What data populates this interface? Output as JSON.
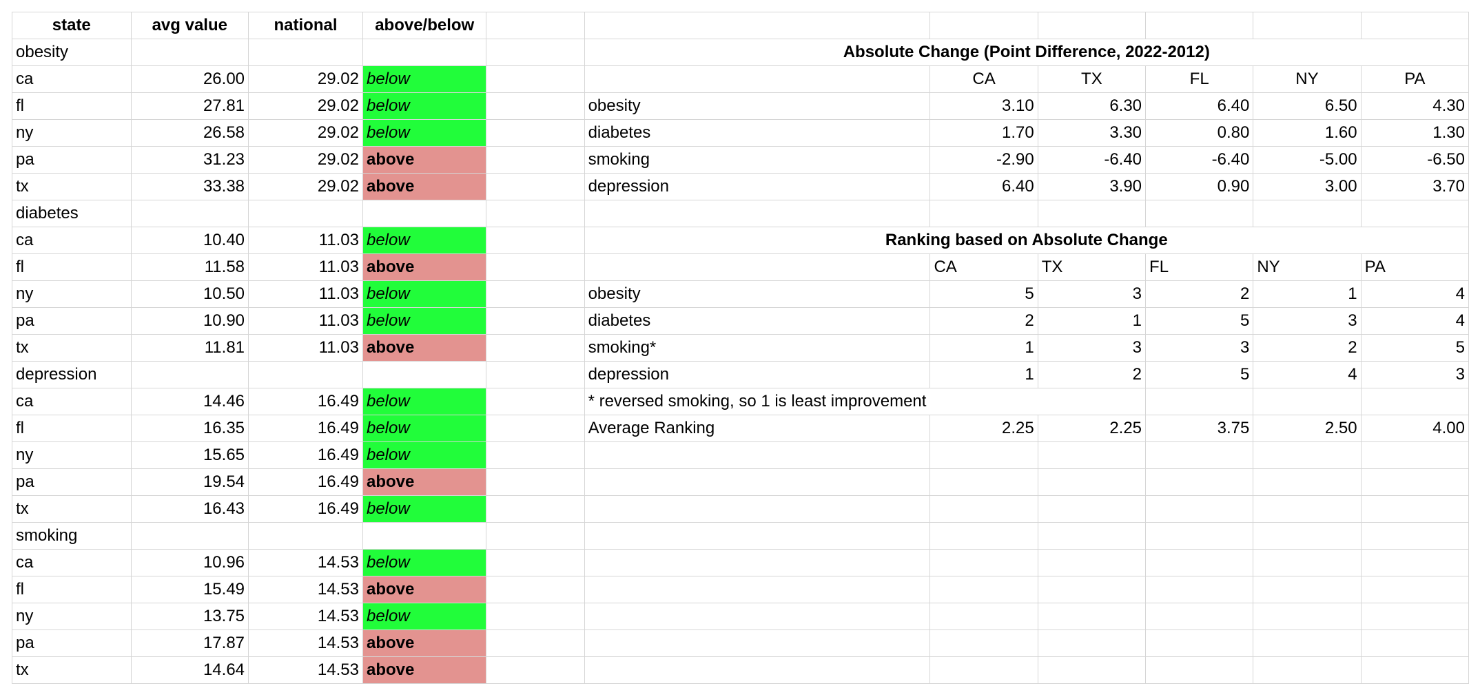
{
  "colors": {
    "below_fill": "#21fd3a",
    "above_fill": "#e39390",
    "grid_line": "#d6d6d6"
  },
  "left_table": {
    "headers": [
      "state",
      "avg value",
      "national",
      "above/below"
    ],
    "sections": [
      {
        "name": "obesity",
        "rows": [
          {
            "state": "ca",
            "avg": "26.00",
            "national": "29.02",
            "status": "below"
          },
          {
            "state": "fl",
            "avg": "27.81",
            "national": "29.02",
            "status": "below"
          },
          {
            "state": "ny",
            "avg": "26.58",
            "national": "29.02",
            "status": "below"
          },
          {
            "state": "pa",
            "avg": "31.23",
            "national": "29.02",
            "status": "above"
          },
          {
            "state": "tx",
            "avg": "33.38",
            "national": "29.02",
            "status": "above"
          }
        ]
      },
      {
        "name": "diabetes",
        "rows": [
          {
            "state": "ca",
            "avg": "10.40",
            "national": "11.03",
            "status": "below"
          },
          {
            "state": "fl",
            "avg": "11.58",
            "national": "11.03",
            "status": "above"
          },
          {
            "state": "ny",
            "avg": "10.50",
            "national": "11.03",
            "status": "below"
          },
          {
            "state": "pa",
            "avg": "10.90",
            "national": "11.03",
            "status": "below"
          },
          {
            "state": "tx",
            "avg": "11.81",
            "national": "11.03",
            "status": "above"
          }
        ]
      },
      {
        "name": "depression",
        "rows": [
          {
            "state": "ca",
            "avg": "14.46",
            "national": "16.49",
            "status": "below"
          },
          {
            "state": "fl",
            "avg": "16.35",
            "national": "16.49",
            "status": "below"
          },
          {
            "state": "ny",
            "avg": "15.65",
            "national": "16.49",
            "status": "below"
          },
          {
            "state": "pa",
            "avg": "19.54",
            "national": "16.49",
            "status": "above"
          },
          {
            "state": "tx",
            "avg": "16.43",
            "national": "16.49",
            "status": "below"
          }
        ]
      },
      {
        "name": "smoking",
        "rows": [
          {
            "state": "ca",
            "avg": "10.96",
            "national": "14.53",
            "status": "below"
          },
          {
            "state": "fl",
            "avg": "15.49",
            "national": "14.53",
            "status": "above"
          },
          {
            "state": "ny",
            "avg": "13.75",
            "national": "14.53",
            "status": "below"
          },
          {
            "state": "pa",
            "avg": "17.87",
            "national": "14.53",
            "status": "above"
          },
          {
            "state": "tx",
            "avg": "14.64",
            "national": "14.53",
            "status": "above"
          }
        ]
      }
    ]
  },
  "change_table": {
    "title": "Absolute Change (Point Difference, 2022-2012)",
    "columns": [
      "CA",
      "TX",
      "FL",
      "NY",
      "PA"
    ],
    "rows": [
      {
        "label": "obesity",
        "values": [
          "3.10",
          "6.30",
          "6.40",
          "6.50",
          "4.30"
        ]
      },
      {
        "label": "diabetes",
        "values": [
          "1.70",
          "3.30",
          "0.80",
          "1.60",
          "1.30"
        ]
      },
      {
        "label": "smoking",
        "values": [
          "-2.90",
          "-6.40",
          "-6.40",
          "-5.00",
          "-6.50"
        ]
      },
      {
        "label": "depression",
        "values": [
          "6.40",
          "3.90",
          "0.90",
          "3.00",
          "3.70"
        ]
      }
    ]
  },
  "ranking_table": {
    "title": "Ranking based on Absolute Change",
    "columns": [
      "CA",
      "TX",
      "FL",
      "NY",
      "PA"
    ],
    "rows": [
      {
        "label": "obesity",
        "values": [
          "5",
          "3",
          "2",
          "1",
          "4"
        ]
      },
      {
        "label": "diabetes",
        "values": [
          "2",
          "1",
          "5",
          "3",
          "4"
        ]
      },
      {
        "label": "smoking*",
        "values": [
          "1",
          "3",
          "3",
          "2",
          "5"
        ]
      },
      {
        "label": "depression",
        "values": [
          "1",
          "2",
          "5",
          "4",
          "3"
        ]
      }
    ],
    "footnote": "* reversed smoking, so 1 is least improvement",
    "average": {
      "label": "Average Ranking",
      "values": [
        "2.25",
        "2.25",
        "3.75",
        "2.50",
        "4.00"
      ]
    }
  }
}
